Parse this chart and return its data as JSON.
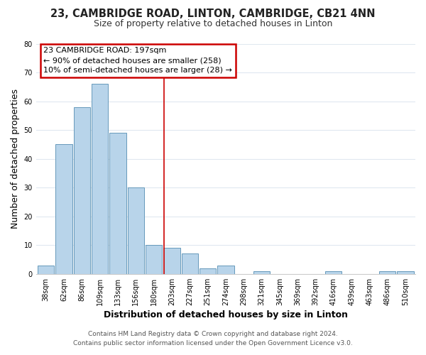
{
  "title": "23, CAMBRIDGE ROAD, LINTON, CAMBRIDGE, CB21 4NN",
  "subtitle": "Size of property relative to detached houses in Linton",
  "xlabel": "Distribution of detached houses by size in Linton",
  "ylabel": "Number of detached properties",
  "bar_labels": [
    "38sqm",
    "62sqm",
    "86sqm",
    "109sqm",
    "133sqm",
    "156sqm",
    "180sqm",
    "203sqm",
    "227sqm",
    "251sqm",
    "274sqm",
    "298sqm",
    "321sqm",
    "345sqm",
    "369sqm",
    "392sqm",
    "416sqm",
    "439sqm",
    "463sqm",
    "486sqm",
    "510sqm"
  ],
  "bar_values": [
    3,
    45,
    58,
    66,
    49,
    30,
    10,
    9,
    7,
    2,
    3,
    0,
    1,
    0,
    0,
    0,
    1,
    0,
    0,
    1,
    1
  ],
  "bar_color": "#b8d4ea",
  "bar_edge_color": "#6699bb",
  "vline_color": "#cc0000",
  "annotation_title": "23 CAMBRIDGE ROAD: 197sqm",
  "annotation_line1": "← 90% of detached houses are smaller (258)",
  "annotation_line2": "10% of semi-detached houses are larger (28) →",
  "annotation_box_facecolor": "#ffffff",
  "annotation_box_edgecolor": "#cc0000",
  "footer_line1": "Contains HM Land Registry data © Crown copyright and database right 2024.",
  "footer_line2": "Contains public sector information licensed under the Open Government Licence v3.0.",
  "ylim": [
    0,
    80
  ],
  "yticks": [
    0,
    10,
    20,
    30,
    40,
    50,
    60,
    70,
    80
  ],
  "background_color": "#ffffff",
  "plot_bg_color": "#ffffff",
  "grid_color": "#e0e8f0",
  "title_fontsize": 10.5,
  "subtitle_fontsize": 9,
  "axis_label_fontsize": 9,
  "tick_fontsize": 7,
  "annotation_fontsize": 8,
  "footer_fontsize": 6.5,
  "vline_pos": 6.58
}
